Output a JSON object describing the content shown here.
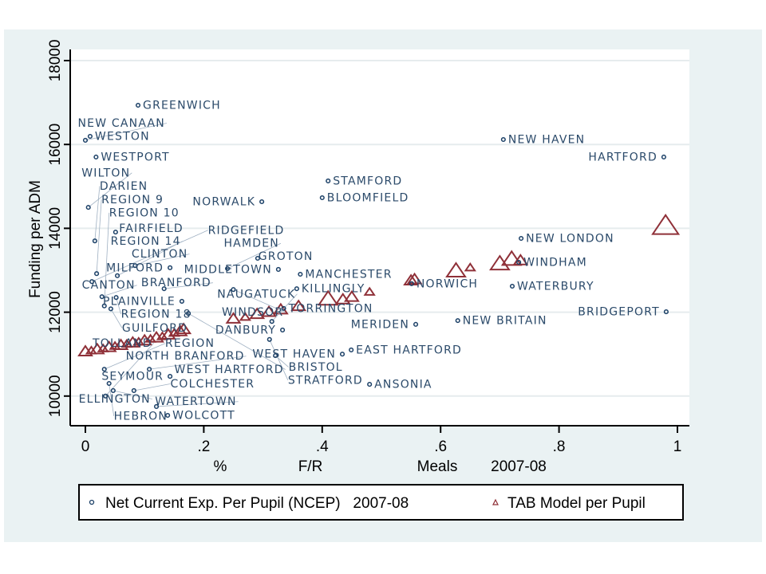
{
  "chart_data": {
    "type": "scatter",
    "xlabel_parts": [
      "%",
      "F/R",
      "Meals",
      "2007-08"
    ],
    "ylabel": "Funding per ADM",
    "xlim": [
      0,
      1
    ],
    "ylim": [
      9400,
      18300
    ],
    "xticks": [
      0,
      0.2,
      0.4,
      0.6,
      0.8,
      1
    ],
    "xtick_labels": [
      "0",
      ".2",
      ".4",
      ".6",
      ".8",
      "1"
    ],
    "yticks": [
      10000,
      12000,
      14000,
      16000,
      18000
    ],
    "ytick_labels": [
      "10000",
      "12000",
      "14000",
      "16000",
      "18000"
    ],
    "grid": true,
    "legend_placement": "bottom",
    "legend": [
      "Net Current Exp. Per Pupil (NCEP)   2007-08",
      "TAB Model per Pupil"
    ],
    "colors": {
      "ncep": "#1a3f66",
      "tab": "#8f3038",
      "label": "#2b4a6a",
      "background": "#eaf2f3"
    },
    "series": [
      {
        "name": "Net Current Exp. Per Pupil (NCEP)   2007-08",
        "marker": "circle",
        "points": [
          {
            "label": "GREENWICH",
            "x": 0.089,
            "y": 16935
          },
          {
            "label": "WESTON",
            "x": 0.008,
            "y": 16194
          },
          {
            "label": "NEW CANAAN",
            "x": 0.0,
            "y": 16100
          },
          {
            "label": "WESTPORT",
            "x": 0.018,
            "y": 15700
          },
          {
            "label": "NEW HAVEN",
            "x": 0.706,
            "y": 16118
          },
          {
            "label": "HARTFORD",
            "x": 0.977,
            "y": 15700
          },
          {
            "label": "STAMFORD",
            "x": 0.41,
            "y": 15130
          },
          {
            "label": "BLOOMFIELD",
            "x": 0.4,
            "y": 14730
          },
          {
            "label": "NORWALK",
            "x": 0.298,
            "y": 14635
          },
          {
            "label": "WILTON",
            "x": 0.005,
            "y": 14500
          },
          {
            "label": "FAIRFIELD",
            "x": 0.051,
            "y": 13910
          },
          {
            "label": "DARIEN",
            "x": 0.016,
            "y": 13700
          },
          {
            "label": "NEW LONDON",
            "x": 0.736,
            "y": 13760
          },
          {
            "label": "GROTON",
            "x": 0.291,
            "y": 13285
          },
          {
            "label": "WINDHAM",
            "x": 0.732,
            "y": 13190
          },
          {
            "label": "CLINTON",
            "x": 0.084,
            "y": 13110
          },
          {
            "label": "MILFORD",
            "x": 0.143,
            "y": 13060
          },
          {
            "label": "HAMDEN",
            "x": 0.24,
            "y": 13040
          },
          {
            "label": "MIDDLETOWN",
            "x": 0.326,
            "y": 13020
          },
          {
            "label": "MANCHESTER",
            "x": 0.363,
            "y": 12905
          },
          {
            "label": "REGION 9",
            "x": 0.019,
            "y": 12920
          },
          {
            "label": "REGION 14",
            "x": 0.054,
            "y": 12870
          },
          {
            "label": "RIDGEFIELD",
            "x": 0.011,
            "y": 12730
          },
          {
            "label": "NORWICH",
            "x": 0.551,
            "y": 12680
          },
          {
            "label": "WATERBURY",
            "x": 0.721,
            "y": 12620
          },
          {
            "label": "BRANFORD",
            "x": 0.133,
            "y": 12560
          },
          {
            "label": "WINDSOR",
            "x": 0.25,
            "y": 12540
          },
          {
            "label": "KILLINGLY",
            "x": 0.357,
            "y": 12560
          },
          {
            "label": "CANTON",
            "x": 0.028,
            "y": 12370
          },
          {
            "label": "REGION 18",
            "x": 0.052,
            "y": 12350
          },
          {
            "label": "PLAINVILLE",
            "x": 0.163,
            "y": 12260
          },
          {
            "label": "REGION 10",
            "x": 0.032,
            "y": 12150
          },
          {
            "label": "GUILFORD",
            "x": 0.043,
            "y": 12080
          },
          {
            "label": "TORRINGTON",
            "x": 0.335,
            "y": 12090
          },
          {
            "label": "BRIDGEPORT",
            "x": 0.981,
            "y": 12010
          },
          {
            "label": "WEST HARTFORD",
            "x": 0.174,
            "y": 11970
          },
          {
            "label": "NEW BRITAIN",
            "x": 0.629,
            "y": 11800
          },
          {
            "label": "NAUGATUCK",
            "x": 0.315,
            "y": 11780
          },
          {
            "label": "MERIDEN",
            "x": 0.558,
            "y": 11710
          },
          {
            "label": "DANBURY",
            "x": 0.333,
            "y": 11575
          },
          {
            "label": "STRATFORD",
            "x": 0.311,
            "y": 11350
          },
          {
            "label": "EAST HARTFORD",
            "x": 0.449,
            "y": 11100
          },
          {
            "label": "WEST HAVEN",
            "x": 0.434,
            "y": 11000
          },
          {
            "label": "BRISTOL",
            "x": 0.321,
            "y": 10965
          },
          {
            "label": "REGION",
            "x": 0.032,
            "y": 10640
          },
          {
            "label": "NORTH BRANFORD",
            "x": 0.108,
            "y": 10640
          },
          {
            "label": "SEYMOUR",
            "x": 0.143,
            "y": 10470
          },
          {
            "label": "HEBRON",
            "x": 0.04,
            "y": 10300
          },
          {
            "label": "ANSONIA",
            "x": 0.48,
            "y": 10280
          },
          {
            "label": "ELLINGTON",
            "x": 0.047,
            "y": 10130
          },
          {
            "label": "COLCHESTER",
            "x": 0.082,
            "y": 10130
          },
          {
            "label": "TOLLAND",
            "x": 0.034,
            "y": 10000
          },
          {
            "label": "WATERTOWN",
            "x": 0.12,
            "y": 9750
          },
          {
            "label": "WOLCOTT",
            "x": 0.139,
            "y": 9540
          }
        ]
      },
      {
        "name": "TAB Model per Pupil",
        "marker": "triangle",
        "points": [
          {
            "x": 0.0,
            "y": 11060,
            "w": 2
          },
          {
            "x": 0.01,
            "y": 11080,
            "w": 1
          },
          {
            "x": 0.02,
            "y": 11110,
            "w": 2
          },
          {
            "x": 0.03,
            "y": 11130,
            "w": 1
          },
          {
            "x": 0.04,
            "y": 11160,
            "w": 2
          },
          {
            "x": 0.05,
            "y": 11190,
            "w": 1
          },
          {
            "x": 0.06,
            "y": 11210,
            "w": 2
          },
          {
            "x": 0.07,
            "y": 11240,
            "w": 1
          },
          {
            "x": 0.08,
            "y": 11270,
            "w": 2
          },
          {
            "x": 0.09,
            "y": 11290,
            "w": 1
          },
          {
            "x": 0.1,
            "y": 11320,
            "w": 2
          },
          {
            "x": 0.11,
            "y": 11360,
            "w": 1
          },
          {
            "x": 0.12,
            "y": 11390,
            "w": 2
          },
          {
            "x": 0.13,
            "y": 11420,
            "w": 1
          },
          {
            "x": 0.14,
            "y": 11460,
            "w": 2
          },
          {
            "x": 0.15,
            "y": 11500,
            "w": 1
          },
          {
            "x": 0.16,
            "y": 11540,
            "w": 2
          },
          {
            "x": 0.166,
            "y": 11590,
            "w": 2
          },
          {
            "x": 0.25,
            "y": 11840,
            "w": 2
          },
          {
            "x": 0.27,
            "y": 11880,
            "w": 1
          },
          {
            "x": 0.29,
            "y": 11950,
            "w": 2
          },
          {
            "x": 0.31,
            "y": 12000,
            "w": 2
          },
          {
            "x": 0.33,
            "y": 12060,
            "w": 2
          },
          {
            "x": 0.36,
            "y": 12140,
            "w": 2
          },
          {
            "x": 0.41,
            "y": 12310,
            "w": 3
          },
          {
            "x": 0.435,
            "y": 12300,
            "w": 2
          },
          {
            "x": 0.45,
            "y": 12360,
            "w": 2
          },
          {
            "x": 0.48,
            "y": 12480,
            "w": 1
          },
          {
            "x": 0.55,
            "y": 12750,
            "w": 2
          },
          {
            "x": 0.556,
            "y": 12780,
            "w": 2
          },
          {
            "x": 0.626,
            "y": 12980,
            "w": 3
          },
          {
            "x": 0.65,
            "y": 13060,
            "w": 1
          },
          {
            "x": 0.7,
            "y": 13150,
            "w": 3
          },
          {
            "x": 0.72,
            "y": 13260,
            "w": 3
          },
          {
            "x": 0.735,
            "y": 13230,
            "w": 2
          },
          {
            "x": 0.98,
            "y": 14050,
            "w": 4
          }
        ]
      }
    ]
  }
}
